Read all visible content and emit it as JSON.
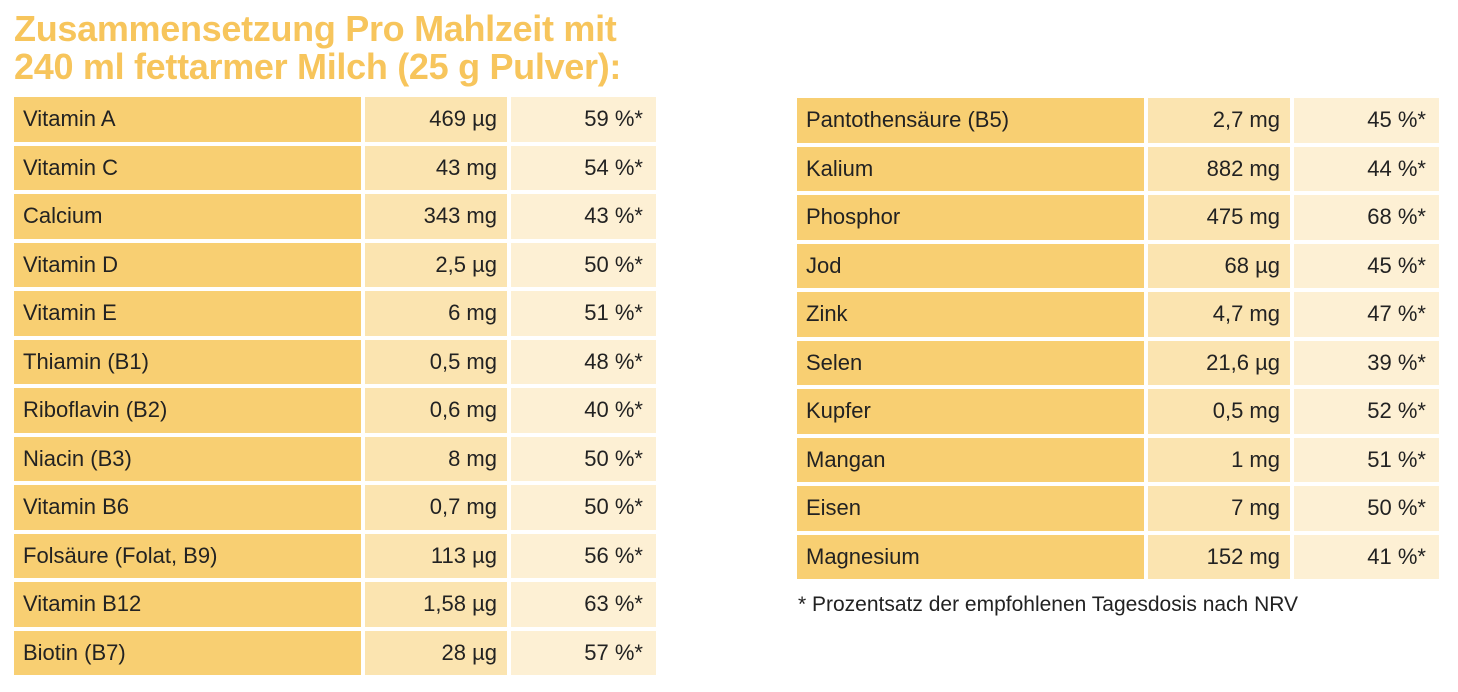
{
  "title": {
    "line1": "Zusammensetzung Pro Mahlzeit mit",
    "line2": "240 ml fettarmer Milch (25 g Pulver):"
  },
  "left_table": [
    {
      "name": "Vitamin A",
      "amount": "469 µg",
      "percent": "59 %*"
    },
    {
      "name": "Vitamin C",
      "amount": "43 mg",
      "percent": "54 %*"
    },
    {
      "name": "Calcium",
      "amount": "343 mg",
      "percent": "43 %*"
    },
    {
      "name": "Vitamin D",
      "amount": "2,5 µg",
      "percent": "50 %*"
    },
    {
      "name": "Vitamin E",
      "amount": "6 mg",
      "percent": "51 %*"
    },
    {
      "name": "Thiamin (B1)",
      "amount": "0,5 mg",
      "percent": "48 %*"
    },
    {
      "name": "Riboflavin (B2)",
      "amount": "0,6 mg",
      "percent": "40 %*"
    },
    {
      "name": "Niacin (B3)",
      "amount": "8 mg",
      "percent": "50 %*"
    },
    {
      "name": "Vitamin B6",
      "amount": "0,7 mg",
      "percent": "50 %*"
    },
    {
      "name": "Folsäure (Folat, B9)",
      "amount": "113 µg",
      "percent": "56 %*"
    },
    {
      "name": "Vitamin B12",
      "amount": "1,58 µg",
      "percent": "63 %*"
    },
    {
      "name": "Biotin (B7)",
      "amount": "28 µg",
      "percent": "57 %*"
    }
  ],
  "right_table": [
    {
      "name": "Pantothensäure (B5)",
      "amount": "2,7 mg",
      "percent": "45 %*"
    },
    {
      "name": "Kalium",
      "amount": "882 mg",
      "percent": "44 %*"
    },
    {
      "name": "Phosphor",
      "amount": "475 mg",
      "percent": "68 %*"
    },
    {
      "name": "Jod",
      "amount": "68 µg",
      "percent": "45 %*"
    },
    {
      "name": "Zink",
      "amount": "4,7 mg",
      "percent": "47 %*"
    },
    {
      "name": "Selen",
      "amount": "21,6 µg",
      "percent": "39 %*"
    },
    {
      "name": "Kupfer",
      "amount": "0,5 mg",
      "percent": "52 %*"
    },
    {
      "name": "Mangan",
      "amount": "1 mg",
      "percent": "51 %*"
    },
    {
      "name": "Eisen",
      "amount": "7 mg",
      "percent": "50 %*"
    },
    {
      "name": "Magnesium",
      "amount": "152 mg",
      "percent": "41 %*"
    }
  ],
  "footnote": "* Prozentsatz der empfohlenen Tagesdosis nach NRV",
  "colors": {
    "title": "#f7c55c",
    "name_cell": "#f8cf72",
    "amount_cell": "#fbe4b0",
    "percent_cell": "#fdf0d4"
  }
}
